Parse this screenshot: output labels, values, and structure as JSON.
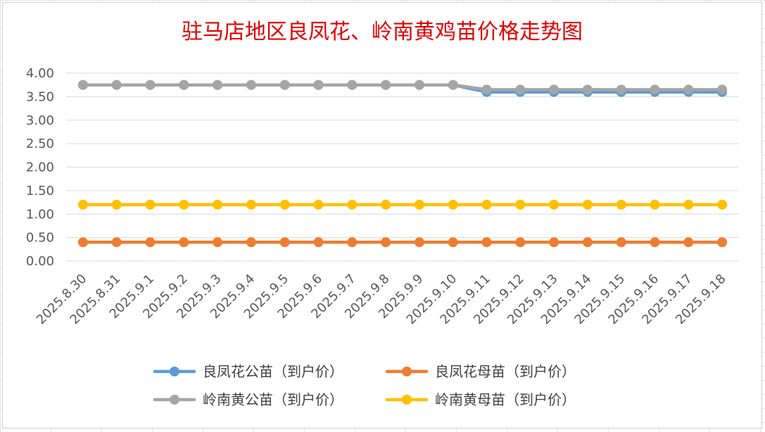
{
  "chart_data": {
    "type": "line",
    "title": "驻马店地区良凤花、岭南黄鸡苗价格走势图",
    "xlabel": "",
    "ylabel": "",
    "ylim": [
      0,
      4
    ],
    "y_ticks": [
      "0.00",
      "0.50",
      "1.00",
      "1.50",
      "2.00",
      "2.50",
      "3.00",
      "3.50",
      "4.00"
    ],
    "grid": true,
    "legend_position": "bottom",
    "categories": [
      "2025.8.30",
      "2025.8.31",
      "2025.9.1",
      "2025.9.2",
      "2025.9.3",
      "2025.9.4",
      "2025.9.5",
      "2025.9.6",
      "2025.9.7",
      "2025.9.8",
      "2025.9.9",
      "2025.9.10",
      "2025.9.11",
      "2025.9.12",
      "2025.9.13",
      "2025.9.14",
      "2025.9.15",
      "2025.9.16",
      "2025.9.17",
      "2025.9.18"
    ],
    "series": [
      {
        "name": "良凤花公苗（到户价）",
        "color": "#5b9bd5",
        "values": [
          3.75,
          3.75,
          3.75,
          3.75,
          3.75,
          3.75,
          3.75,
          3.75,
          3.75,
          3.75,
          3.75,
          3.75,
          3.6,
          3.6,
          3.6,
          3.6,
          3.6,
          3.6,
          3.6,
          3.6
        ]
      },
      {
        "name": "良凤花母苗（到户价）",
        "color": "#ed7d31",
        "values": [
          0.4,
          0.4,
          0.4,
          0.4,
          0.4,
          0.4,
          0.4,
          0.4,
          0.4,
          0.4,
          0.4,
          0.4,
          0.4,
          0.4,
          0.4,
          0.4,
          0.4,
          0.4,
          0.4,
          0.4
        ]
      },
      {
        "name": "岭南黄公苗（到户价）",
        "color": "#a5a5a5",
        "values": [
          3.75,
          3.75,
          3.75,
          3.75,
          3.75,
          3.75,
          3.75,
          3.75,
          3.75,
          3.75,
          3.75,
          3.75,
          3.65,
          3.65,
          3.65,
          3.65,
          3.65,
          3.65,
          3.65,
          3.65
        ]
      },
      {
        "name": "岭南黄母苗（到户价）",
        "color": "#ffc000",
        "values": [
          1.2,
          1.2,
          1.2,
          1.2,
          1.2,
          1.2,
          1.2,
          1.2,
          1.2,
          1.2,
          1.2,
          1.2,
          1.2,
          1.2,
          1.2,
          1.2,
          1.2,
          1.2,
          1.2,
          1.2
        ]
      }
    ]
  }
}
